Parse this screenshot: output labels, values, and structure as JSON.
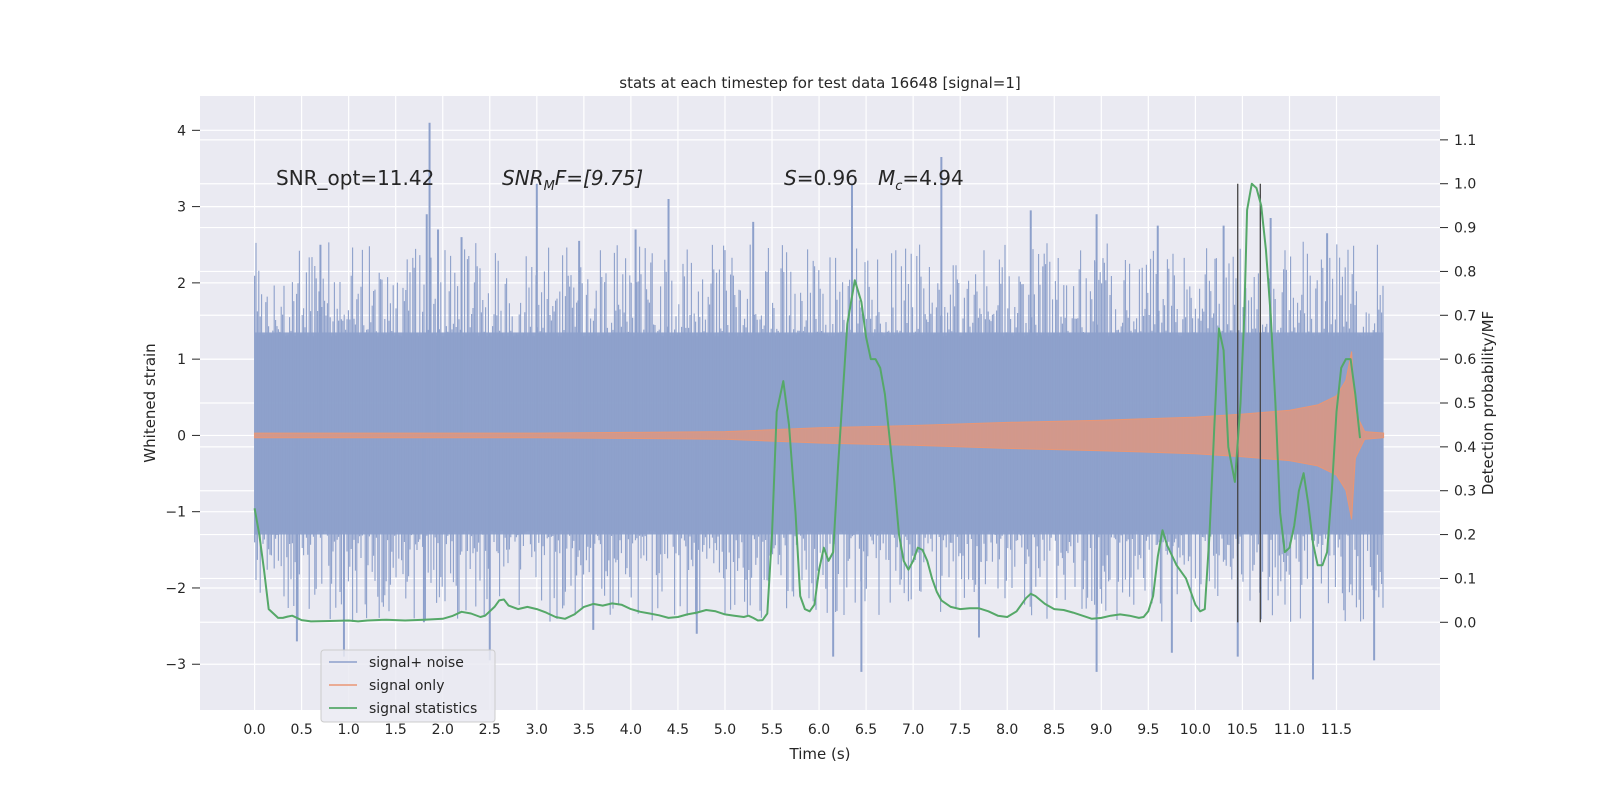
{
  "chart_data": {
    "type": "line",
    "title": "stats at each timestep for test data 16648 [signal=1]",
    "xlabel": "Time (s)",
    "ylabel_left": "Whitened strain",
    "ylabel_right": "Detection probability/MF",
    "xlim": [
      -0.58,
      12.6
    ],
    "ylim_left": [
      -3.6,
      4.45
    ],
    "ylim_right": [
      -0.2,
      1.2
    ],
    "x_ticks": [
      "0.0",
      "0.5",
      "1.0",
      "1.5",
      "2.0",
      "2.5",
      "3.0",
      "3.5",
      "4.0",
      "4.5",
      "5.0",
      "5.5",
      "6.0",
      "6.5",
      "7.0",
      "7.5",
      "8.0",
      "8.5",
      "9.0",
      "9.5",
      "10.0",
      "10.5",
      "11.0",
      "11.5"
    ],
    "y_ticks_left": [
      "4",
      "3",
      "2",
      "1",
      "0",
      "−1",
      "−2",
      "−3"
    ],
    "y_ticks_right": [
      "1.1",
      "1.0",
      "0.9",
      "0.8",
      "0.7",
      "0.6",
      "0.5",
      "0.4",
      "0.3",
      "0.2",
      "0.1",
      "0.0"
    ],
    "annotations": {
      "snr_opt": "SNR_opt=11.42",
      "snr_mf_main": "SNR",
      "snr_mf_sub": "M",
      "snr_mf_rest": "F=[9.75]",
      "s_main": "S",
      "s_rest": "=0.96",
      "mc_main": "M",
      "mc_sub": "c",
      "mc_rest": "=4.94"
    },
    "legend": {
      "position": "lower-left",
      "items": [
        "signal+ noise",
        "signal only",
        "signal statistics"
      ]
    },
    "vlines_x": [
      10.45,
      10.69
    ],
    "vlines_range": [
      0.0,
      1.0
    ],
    "series": [
      {
        "name": "signal+ noise",
        "color": "#8da0cb",
        "t_range": [
          0.0,
          12.0
        ],
        "band_upper": 1.35,
        "band_lower": -1.3,
        "spikes": [
          [
            1.86,
            4.1
          ],
          [
            1.83,
            2.9
          ],
          [
            1.95,
            2.7
          ],
          [
            3.0,
            3.3
          ],
          [
            4.4,
            3.1
          ],
          [
            6.35,
            3.3
          ],
          [
            7.3,
            3.65
          ],
          [
            8.25,
            2.95
          ],
          [
            8.95,
            2.9
          ],
          [
            0.7,
            2.5
          ],
          [
            2.2,
            2.6
          ],
          [
            3.45,
            2.55
          ],
          [
            4.05,
            2.7
          ],
          [
            5.3,
            2.8
          ],
          [
            9.6,
            2.75
          ],
          [
            10.3,
            2.75
          ],
          [
            10.8,
            2.85
          ],
          [
            11.4,
            2.65
          ],
          [
            0.45,
            -2.7
          ],
          [
            0.95,
            -2.9
          ],
          [
            1.8,
            -2.45
          ],
          [
            2.5,
            -2.95
          ],
          [
            3.6,
            -2.55
          ],
          [
            4.7,
            -2.6
          ],
          [
            6.45,
            -3.1
          ],
          [
            6.15,
            -2.9
          ],
          [
            7.7,
            -2.65
          ],
          [
            8.95,
            -3.1
          ],
          [
            9.75,
            -2.85
          ],
          [
            10.45,
            -2.9
          ],
          [
            11.25,
            -3.2
          ],
          [
            11.9,
            -2.95
          ]
        ]
      },
      {
        "name": "signal only",
        "color": "#e99675",
        "chirp_amplitude": [
          [
            0.0,
            0.03
          ],
          [
            3.0,
            0.03
          ],
          [
            5.0,
            0.05
          ],
          [
            6.0,
            0.1
          ],
          [
            7.0,
            0.13
          ],
          [
            8.0,
            0.17
          ],
          [
            9.0,
            0.2
          ],
          [
            10.0,
            0.24
          ],
          [
            10.5,
            0.28
          ],
          [
            11.0,
            0.33
          ],
          [
            11.3,
            0.4
          ],
          [
            11.5,
            0.52
          ],
          [
            11.6,
            0.72
          ],
          [
            11.66,
            1.1
          ],
          [
            11.7,
            0.3
          ],
          [
            11.8,
            0.05
          ],
          [
            12.0,
            0.03
          ]
        ]
      },
      {
        "name": "signal statistics",
        "color": "#55a868",
        "points": [
          [
            0.0,
            0.26
          ],
          [
            0.05,
            0.2
          ],
          [
            0.1,
            0.12
          ],
          [
            0.15,
            0.03
          ],
          [
            0.2,
            0.02
          ],
          [
            0.25,
            0.01
          ],
          [
            0.3,
            0.01
          ],
          [
            0.35,
            0.013
          ],
          [
            0.4,
            0.015
          ],
          [
            0.45,
            0.01
          ],
          [
            0.5,
            0.005
          ],
          [
            0.6,
            0.002
          ],
          [
            0.8,
            0.003
          ],
          [
            1.0,
            0.004
          ],
          [
            1.1,
            0.002
          ],
          [
            1.2,
            0.004
          ],
          [
            1.4,
            0.006
          ],
          [
            1.6,
            0.004
          ],
          [
            1.8,
            0.006
          ],
          [
            2.0,
            0.008
          ],
          [
            2.1,
            0.014
          ],
          [
            2.2,
            0.024
          ],
          [
            2.3,
            0.02
          ],
          [
            2.4,
            0.012
          ],
          [
            2.45,
            0.015
          ],
          [
            2.55,
            0.035
          ],
          [
            2.6,
            0.05
          ],
          [
            2.65,
            0.052
          ],
          [
            2.7,
            0.038
          ],
          [
            2.8,
            0.03
          ],
          [
            2.9,
            0.035
          ],
          [
            3.0,
            0.03
          ],
          [
            3.1,
            0.022
          ],
          [
            3.2,
            0.012
          ],
          [
            3.3,
            0.008
          ],
          [
            3.4,
            0.018
          ],
          [
            3.5,
            0.035
          ],
          [
            3.6,
            0.042
          ],
          [
            3.7,
            0.038
          ],
          [
            3.8,
            0.043
          ],
          [
            3.9,
            0.04
          ],
          [
            4.0,
            0.03
          ],
          [
            4.1,
            0.024
          ],
          [
            4.2,
            0.02
          ],
          [
            4.3,
            0.016
          ],
          [
            4.4,
            0.01
          ],
          [
            4.5,
            0.012
          ],
          [
            4.6,
            0.018
          ],
          [
            4.7,
            0.022
          ],
          [
            4.8,
            0.028
          ],
          [
            4.9,
            0.025
          ],
          [
            5.0,
            0.018
          ],
          [
            5.1,
            0.015
          ],
          [
            5.2,
            0.012
          ],
          [
            5.25,
            0.015
          ],
          [
            5.3,
            0.01
          ],
          [
            5.35,
            0.004
          ],
          [
            5.4,
            0.005
          ],
          [
            5.45,
            0.02
          ],
          [
            5.5,
            0.2
          ],
          [
            5.55,
            0.48
          ],
          [
            5.62,
            0.55
          ],
          [
            5.68,
            0.45
          ],
          [
            5.75,
            0.25
          ],
          [
            5.8,
            0.06
          ],
          [
            5.85,
            0.03
          ],
          [
            5.9,
            0.025
          ],
          [
            5.95,
            0.04
          ],
          [
            6.0,
            0.12
          ],
          [
            6.05,
            0.17
          ],
          [
            6.1,
            0.14
          ],
          [
            6.15,
            0.16
          ],
          [
            6.2,
            0.35
          ],
          [
            6.3,
            0.68
          ],
          [
            6.38,
            0.78
          ],
          [
            6.45,
            0.73
          ],
          [
            6.5,
            0.65
          ],
          [
            6.55,
            0.6
          ],
          [
            6.6,
            0.6
          ],
          [
            6.65,
            0.58
          ],
          [
            6.7,
            0.52
          ],
          [
            6.8,
            0.32
          ],
          [
            6.85,
            0.2
          ],
          [
            6.9,
            0.14
          ],
          [
            6.95,
            0.12
          ],
          [
            7.0,
            0.14
          ],
          [
            7.05,
            0.17
          ],
          [
            7.1,
            0.165
          ],
          [
            7.15,
            0.14
          ],
          [
            7.2,
            0.1
          ],
          [
            7.25,
            0.07
          ],
          [
            7.3,
            0.05
          ],
          [
            7.4,
            0.035
          ],
          [
            7.5,
            0.03
          ],
          [
            7.6,
            0.032
          ],
          [
            7.7,
            0.032
          ],
          [
            7.8,
            0.025
          ],
          [
            7.9,
            0.015
          ],
          [
            8.0,
            0.012
          ],
          [
            8.1,
            0.025
          ],
          [
            8.2,
            0.055
          ],
          [
            8.25,
            0.065
          ],
          [
            8.3,
            0.06
          ],
          [
            8.4,
            0.042
          ],
          [
            8.5,
            0.03
          ],
          [
            8.6,
            0.028
          ],
          [
            8.7,
            0.022
          ],
          [
            8.8,
            0.015
          ],
          [
            8.9,
            0.008
          ],
          [
            9.0,
            0.01
          ],
          [
            9.1,
            0.015
          ],
          [
            9.2,
            0.018
          ],
          [
            9.3,
            0.015
          ],
          [
            9.4,
            0.01
          ],
          [
            9.45,
            0.012
          ],
          [
            9.5,
            0.025
          ],
          [
            9.55,
            0.06
          ],
          [
            9.6,
            0.15
          ],
          [
            9.65,
            0.21
          ],
          [
            9.7,
            0.175
          ],
          [
            9.8,
            0.13
          ],
          [
            9.9,
            0.1
          ],
          [
            9.95,
            0.07
          ],
          [
            10.0,
            0.04
          ],
          [
            10.05,
            0.025
          ],
          [
            10.1,
            0.03
          ],
          [
            10.15,
            0.2
          ],
          [
            10.2,
            0.44
          ],
          [
            10.25,
            0.67
          ],
          [
            10.3,
            0.62
          ],
          [
            10.35,
            0.4
          ],
          [
            10.42,
            0.32
          ],
          [
            10.48,
            0.5
          ],
          [
            10.52,
            0.7
          ],
          [
            10.55,
            0.94
          ],
          [
            10.6,
            1.0
          ],
          [
            10.65,
            0.99
          ],
          [
            10.7,
            0.95
          ],
          [
            10.75,
            0.85
          ],
          [
            10.8,
            0.7
          ],
          [
            10.85,
            0.5
          ],
          [
            10.9,
            0.25
          ],
          [
            10.95,
            0.16
          ],
          [
            11.0,
            0.17
          ],
          [
            11.05,
            0.22
          ],
          [
            11.1,
            0.3
          ],
          [
            11.15,
            0.34
          ],
          [
            11.2,
            0.27
          ],
          [
            11.25,
            0.18
          ],
          [
            11.3,
            0.13
          ],
          [
            11.35,
            0.13
          ],
          [
            11.4,
            0.16
          ],
          [
            11.45,
            0.3
          ],
          [
            11.5,
            0.48
          ],
          [
            11.55,
            0.58
          ],
          [
            11.6,
            0.6
          ],
          [
            11.65,
            0.6
          ],
          [
            11.7,
            0.52
          ],
          [
            11.75,
            0.42
          ]
        ]
      }
    ]
  }
}
